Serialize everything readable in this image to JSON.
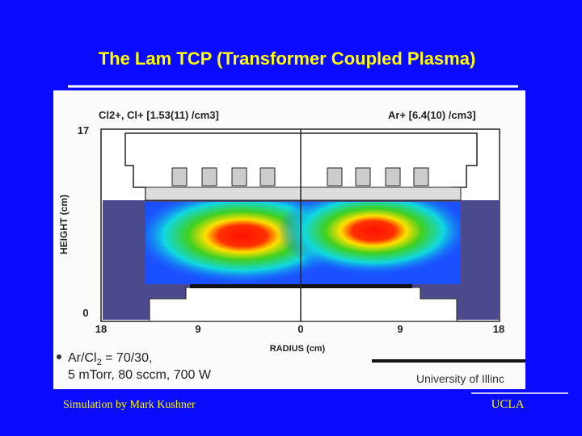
{
  "slide": {
    "title": "The Lam TCP (Transformer Coupled Plasma)",
    "figure": {
      "left_label": "Cl2+, Cl+ [1.53(11) /cm3]",
      "right_label": "Ar+ [6.4(10) /cm3]",
      "y_axis_label": "HEIGHT (cm)",
      "y_ticks": [
        "17",
        "0"
      ],
      "x_ticks": [
        "18",
        "9",
        "0",
        "9",
        "18"
      ],
      "x_axis_label": "RADIUS (cm)",
      "bullet": {
        "line1_a": "Ar/Cl",
        "line1_sub": "2",
        "line1_b": " = 70/30,",
        "line2": "5 mTorr, 80 sccm, 700 W"
      },
      "credit": "University of Illinc"
    },
    "footer": {
      "left": "Simulation by Mark Kushner",
      "right": "UCLA"
    }
  }
}
